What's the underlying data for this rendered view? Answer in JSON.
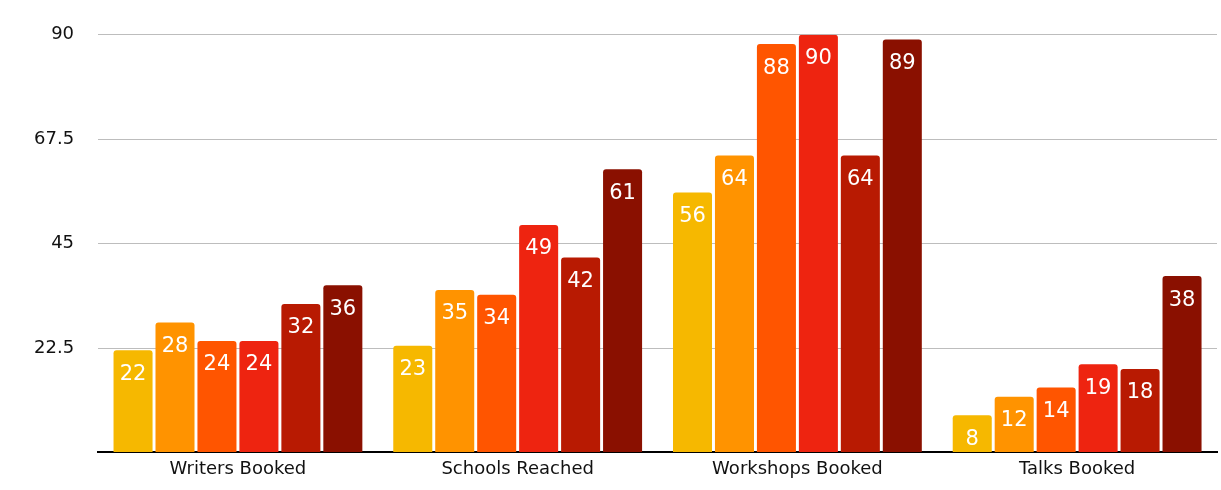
{
  "chart_data": {
    "type": "bar",
    "categories": [
      "Writers Booked",
      "Schools Reached",
      "Workshops Booked",
      "Talks Booked"
    ],
    "series": [
      {
        "color": "#f6b800",
        "values": [
          22,
          23,
          56,
          8
        ]
      },
      {
        "color": "#ff9300",
        "values": [
          28,
          35,
          64,
          12
        ]
      },
      {
        "color": "#ff5500",
        "values": [
          24,
          34,
          88,
          14
        ]
      },
      {
        "color": "#ee2410",
        "values": [
          24,
          49,
          90,
          19
        ]
      },
      {
        "color": "#b81a02",
        "values": [
          32,
          42,
          64,
          18
        ]
      },
      {
        "color": "#8a1000",
        "values": [
          36,
          61,
          89,
          38
        ]
      }
    ],
    "ylim": [
      0,
      90
    ],
    "yticks": [
      {
        "value": 0,
        "label": null
      },
      22.5,
      45,
      67.5,
      90
    ],
    "grid": "y",
    "data_labels": true,
    "legend": false
  }
}
